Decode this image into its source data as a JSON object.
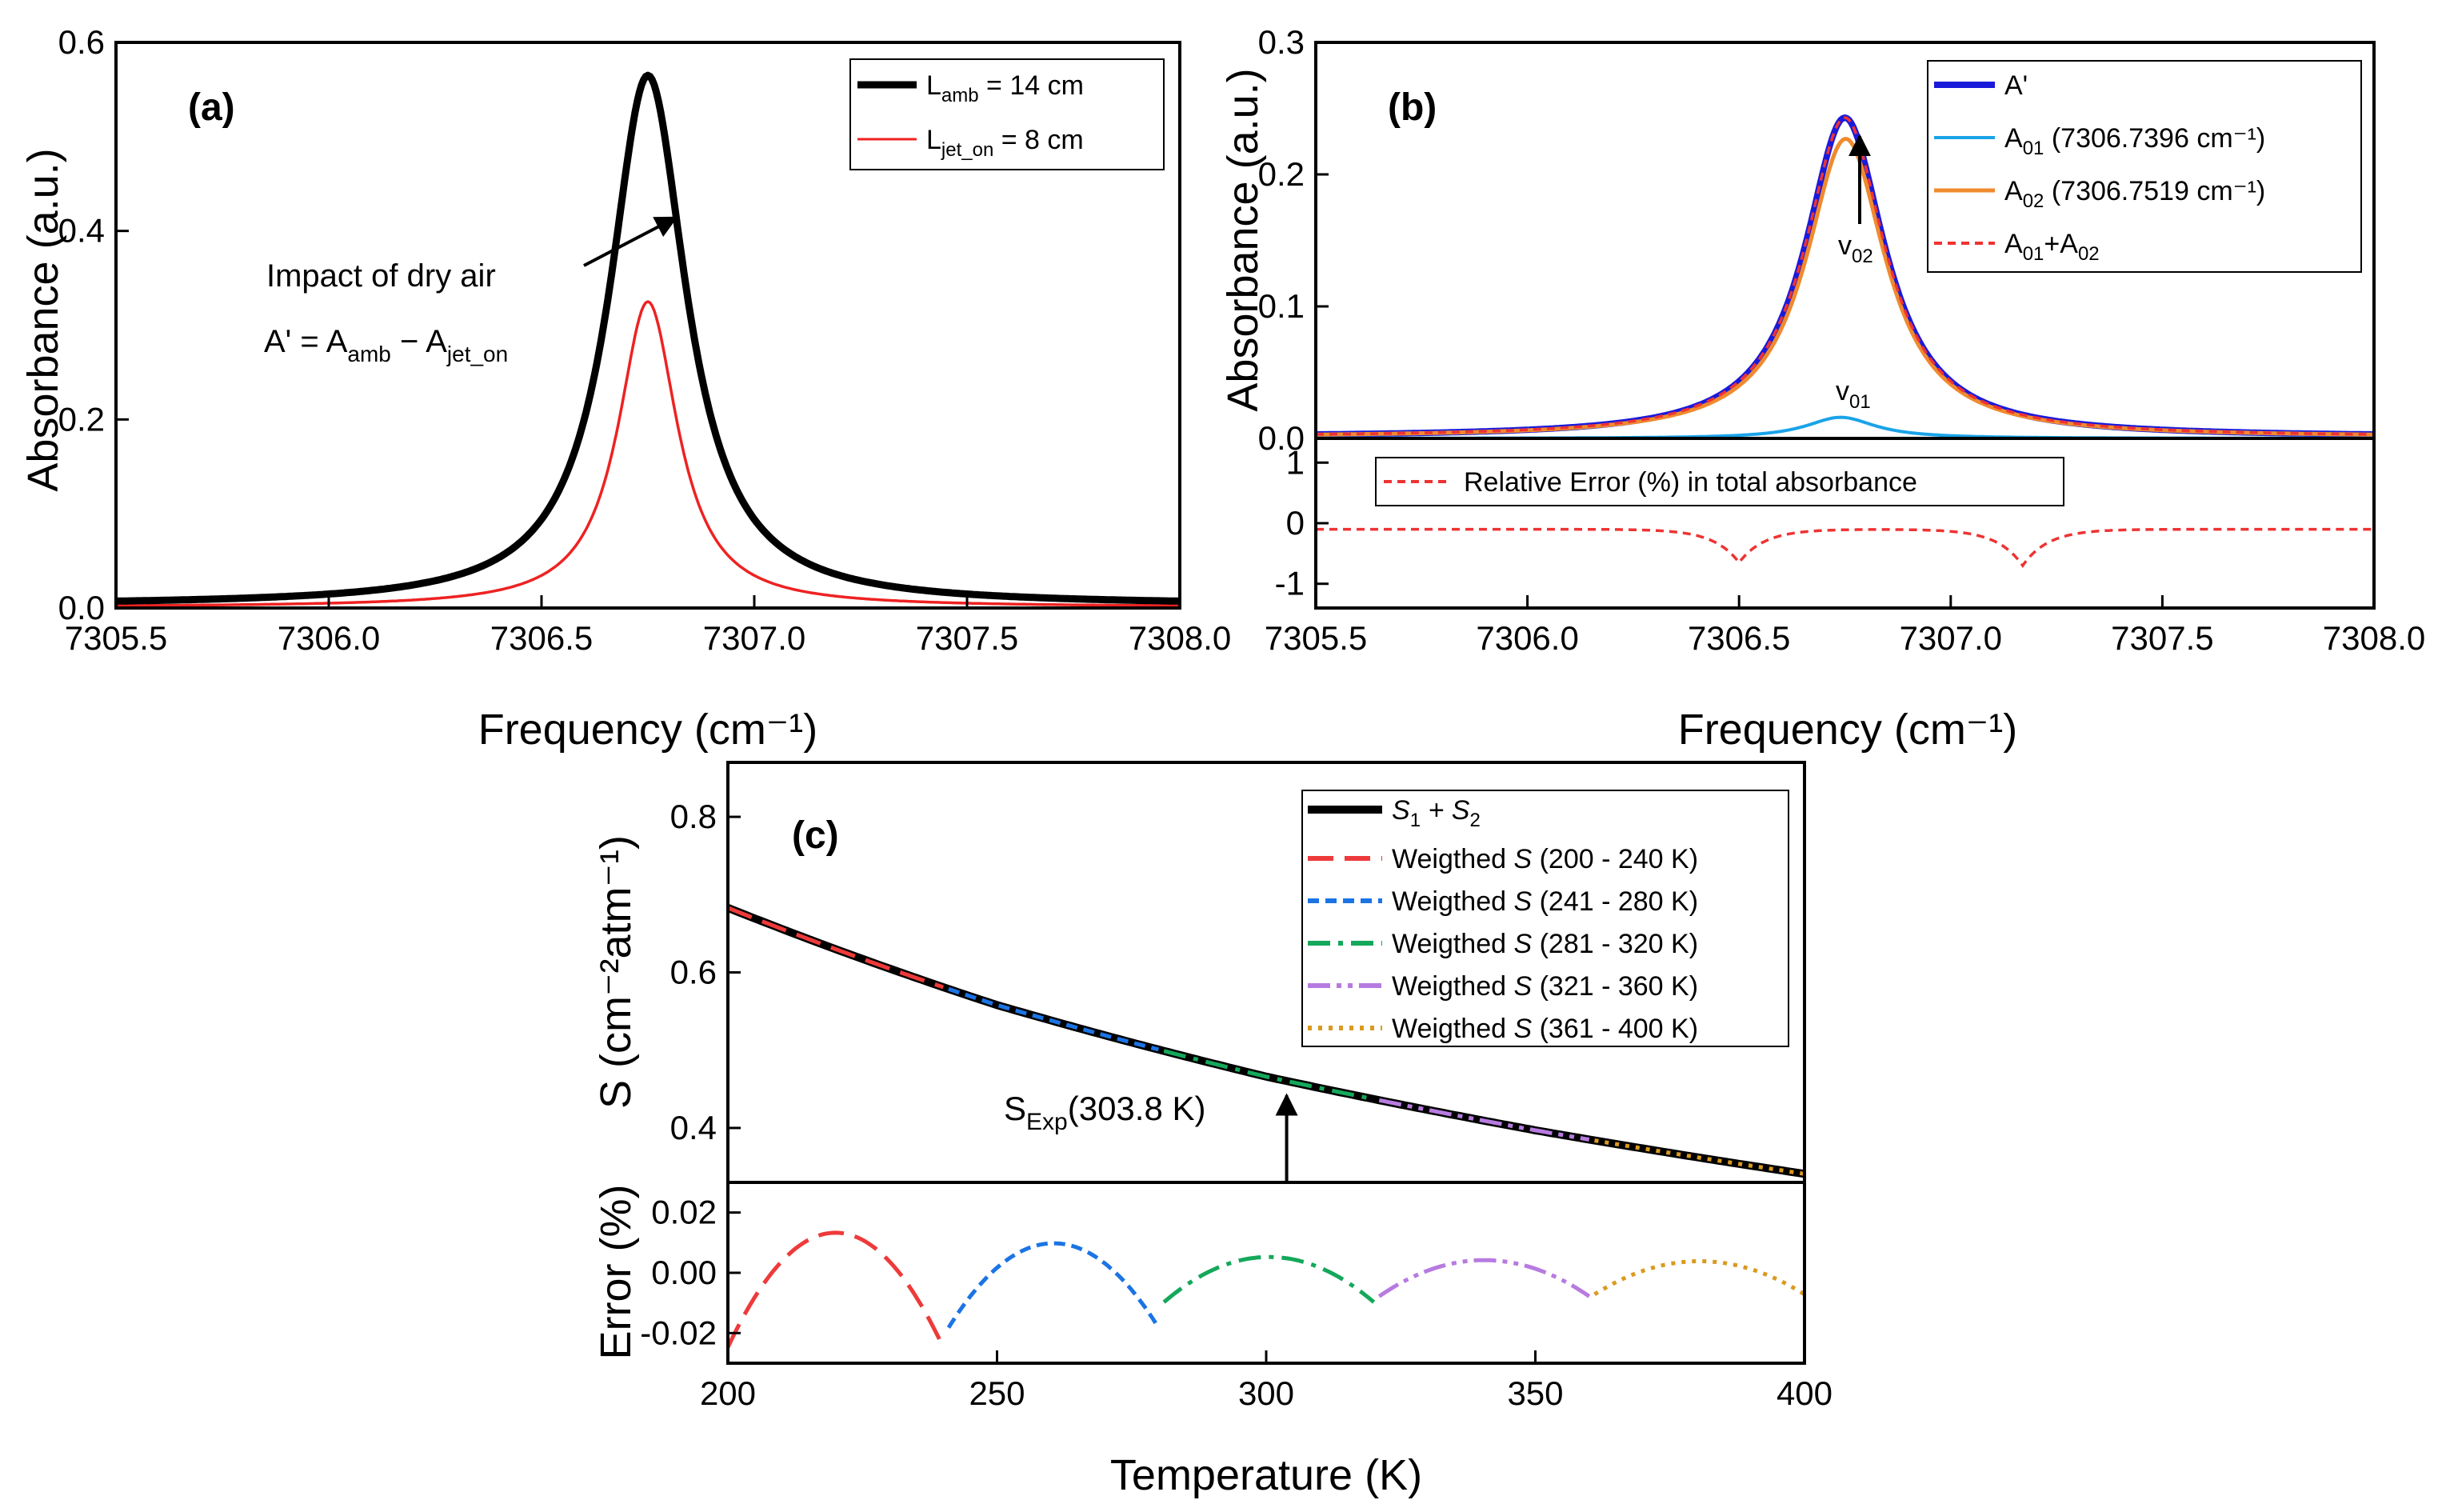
{
  "chart_data": [
    {
      "panel": "(a)",
      "type": "line",
      "xlabel": "Frequency (cm⁻¹)",
      "ylabel": "Absorbance (a.u.)",
      "xlim": [
        7305.5,
        7308.0
      ],
      "ylim": [
        0.0,
        0.6
      ],
      "xticks": [
        "7305.5",
        "7306.0",
        "7306.5",
        "7307.0",
        "7307.5",
        "7308.0"
      ],
      "yticks": [
        "0.0",
        "0.2",
        "0.4",
        "0.6"
      ],
      "legend_position": "top-right",
      "series": [
        {
          "name": "L_amb = 14 cm",
          "legend_main": "L",
          "legend_sub": "amb",
          "legend_rest": " = 14 cm",
          "color": "#000000",
          "peak_x": 7306.75,
          "peak_y": 0.565,
          "half_width": 0.11,
          "baseline": 0.003
        },
        {
          "name": "L_jet_on = 8 cm",
          "legend_main": "L",
          "legend_sub": "jet_on",
          "legend_rest": " = 8 cm",
          "color": "#ee2222",
          "peak_x": 7306.75,
          "peak_y": 0.325,
          "half_width": 0.085,
          "baseline": 0.001
        }
      ],
      "annotation": {
        "line1": "Impact of dry air",
        "line2_a": "A' = A",
        "line2_sub1": "amb",
        "line2_b": " − A",
        "line2_sub2": "jet_on"
      }
    },
    {
      "panel": "(b)",
      "type": "line",
      "xlabel": "Frequency (cm⁻¹)",
      "ylabel": "Absorbance (a.u.)",
      "xlim": [
        7305.5,
        7308.0
      ],
      "ylim_top": [
        0.0,
        0.3
      ],
      "ylim_bottom": [
        -1.4,
        1.4
      ],
      "xticks": [
        "7305.5",
        "7306.0",
        "7306.5",
        "7307.0",
        "7307.5",
        "7308.0"
      ],
      "yticks_top": [
        "0.0",
        "0.1",
        "0.2",
        "0.3"
      ],
      "yticks_bottom": [
        "-1",
        "0",
        "1"
      ],
      "legend_position": "top-right",
      "series": [
        {
          "name": "A'",
          "legend_main": "A'",
          "color": "#1a1adb",
          "peak_x": 7306.75,
          "peak_y": 0.243,
          "half_width": 0.115,
          "baseline": 0.001
        },
        {
          "name": "A01 (7306.7396 cm-1)",
          "legend_main": "A",
          "legend_sub": "01",
          "legend_rest": " (7306.7396 cm⁻¹)",
          "color": "#1aa3e8",
          "peak_x": 7306.74,
          "peak_y": 0.016,
          "half_width": 0.1,
          "baseline": 0.0
        },
        {
          "name": "A02 (7306.7519 cm-1)",
          "legend_main": "A",
          "legend_sub": "02",
          "legend_rest": " (7306.7519 cm⁻¹)",
          "color": "#f08a2e",
          "peak_x": 7306.752,
          "peak_y": 0.227,
          "half_width": 0.115,
          "baseline": 0.001
        },
        {
          "name": "A01+A02",
          "legend_main": "A",
          "legend_sub": "01",
          "legend_mid": "+A",
          "legend_sub2": "02",
          "color": "#ee3333",
          "peak_x": 7306.75,
          "peak_y": 0.243,
          "half_width": 0.115,
          "baseline": 0.001
        }
      ],
      "error_series": {
        "name": "Relative Error (%) in total absorbance",
        "color": "#ee3333",
        "baseline": -0.1,
        "dips": [
          {
            "x": 7306.5,
            "depth": -0.55
          },
          {
            "x": 7307.17,
            "depth": -0.6
          }
        ]
      },
      "annotations": {
        "v02_main": "v",
        "v02_sub": "02",
        "v01_main": "v",
        "v01_sub": "01"
      }
    },
    {
      "panel": "(c)",
      "type": "line",
      "xlabel": "Temperature (K)",
      "ylabel_top": "S (cm⁻²atm⁻¹)",
      "ylabel_bottom": "Error (%)",
      "xlim": [
        200,
        400
      ],
      "ylim_top": [
        0.33,
        0.87
      ],
      "ylim_bottom": [
        -0.03,
        0.03
      ],
      "xticks": [
        "200",
        "250",
        "300",
        "350",
        "400"
      ],
      "yticks_top": [
        "0.4",
        "0.6",
        "0.8"
      ],
      "yticks_bottom": [
        "-0.02",
        "0.00",
        "0.02"
      ],
      "legend_position": "top-right",
      "total_curve": {
        "name": "S1 + S2",
        "color": "#000000",
        "x": [
          200,
          250,
          300,
          350,
          400
        ],
        "y": [
          0.683,
          0.558,
          0.466,
          0.397,
          0.341
        ]
      },
      "segments": [
        {
          "name": "Weigthed S (200 - 240 K)",
          "range": "(200 - 240 K)",
          "color": "#ee3a3a",
          "t0": 200,
          "t1": 240,
          "dash": "32 14",
          "error_amp": 0.038
        },
        {
          "name": "Weigthed S (241 - 280 K)",
          "range": "(241 - 280 K)",
          "color": "#1b74e4",
          "t0": 241,
          "t1": 280,
          "dash": "14 8",
          "error_amp": 0.028
        },
        {
          "name": "Weigthed S (281 - 320 K)",
          "range": "(281 - 320 K)",
          "color": "#14a85a",
          "t0": 281,
          "t1": 320,
          "dash": "28 10 6 10",
          "error_amp": 0.015
        },
        {
          "name": "Weigthed S (321 - 360 K)",
          "range": "(321 - 360 K)",
          "color": "#b77be0",
          "t0": 321,
          "t1": 360,
          "dash": "28 8 6 8 6 8",
          "error_amp": 0.012
        },
        {
          "name": "Weigthed S (361 - 400 K)",
          "range": "(361 - 400 K)",
          "color": "#d99a1e",
          "t0": 361,
          "t1": 400,
          "dash": "5 8",
          "error_amp": 0.011
        }
      ],
      "legend_total": {
        "main": "S",
        "sub1": "1",
        "plus": " + S",
        "sub2": "2"
      },
      "legend_prefix": "Weigthed S",
      "annotation": {
        "main": "S",
        "sub": "Exp",
        "rest": "(303.8 K)",
        "x": 303.8
      }
    }
  ]
}
